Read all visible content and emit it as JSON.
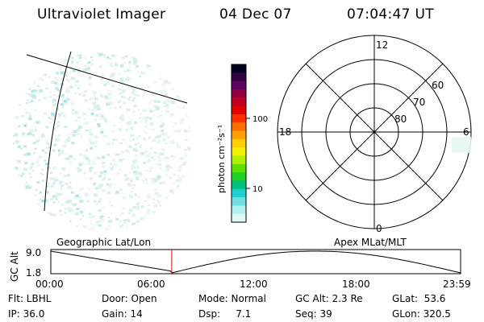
{
  "header": {
    "title": "Ultraviolet Imager",
    "date": "04 Dec 07",
    "time": "07:04:47 UT"
  },
  "panels": {
    "left_caption": "Geographic Lat/Lon",
    "right_caption": "Apex MLat/MLT"
  },
  "colorbar": {
    "label": "photon cm⁻²s⁻¹",
    "ticks": [
      "100",
      "10"
    ],
    "colors": [
      "#000020",
      "#300040",
      "#600060",
      "#900040",
      "#c00020",
      "#e00000",
      "#ff3000",
      "#ff7000",
      "#ffa000",
      "#ffd000",
      "#f0f000",
      "#b0f000",
      "#60e000",
      "#20d020",
      "#00c080",
      "#20d0d0",
      "#70e0e0",
      "#b0f0f0",
      "#e0f8f8"
    ]
  },
  "polar": {
    "mlt_labels": {
      "top": "12",
      "bottom": "0",
      "left": "18",
      "right": "6"
    },
    "lat_labels": [
      "60",
      "70",
      "80"
    ]
  },
  "altitude_plot": {
    "ylabel": "GC Alt",
    "yticks": [
      "9.0",
      "1.8"
    ],
    "xticks": [
      "00:00",
      "06:00",
      "12:00",
      "18:00",
      "23:59"
    ],
    "current_time_marker_hours": 7.08
  },
  "info": {
    "col1": [
      "Flt: LBHL",
      "IP: 36.0"
    ],
    "col2": [
      "Door: Open",
      "Gain: 14"
    ],
    "col3": [
      "Mode: Normal",
      "Dsp:     7.1"
    ],
    "col4": [
      "GC Alt: 2.3 Re",
      "Seq: 39"
    ],
    "col5": [
      "GLat:  53.6",
      "GLon: 320.5"
    ]
  }
}
